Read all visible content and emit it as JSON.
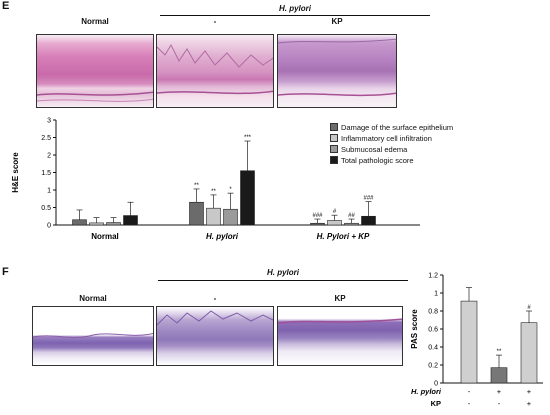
{
  "panelE": {
    "letter": "E",
    "header_group": "H. pylori",
    "image_labels": [
      "Normal",
      "-",
      "KP"
    ],
    "chart_data": {
      "type": "bar",
      "ylabel": "H&E score",
      "ylim": [
        0,
        3
      ],
      "yticks": [
        "0",
        "0.5",
        "1",
        "1.5",
        "2",
        "2.5",
        "3"
      ],
      "categories": [
        "Normal",
        "H. pylori",
        "H. Pylori + KP"
      ],
      "series": [
        {
          "name": "Damage of the surface epithelium",
          "color": "#6b6b6b",
          "values": [
            0.15,
            0.65,
            0.05
          ],
          "errors": [
            0.28,
            0.38,
            0.12
          ],
          "marks": [
            "",
            "**",
            "###"
          ]
        },
        {
          "name": "Inflammatory cell infiltration",
          "color": "#c8c8c8",
          "values": [
            0.06,
            0.48,
            0.13
          ],
          "errors": [
            0.15,
            0.38,
            0.15
          ],
          "marks": [
            "",
            "**",
            "#"
          ]
        },
        {
          "name": "Submucosal edema",
          "color": "#9a9a9a",
          "values": [
            0.07,
            0.45,
            0.05
          ],
          "errors": [
            0.14,
            0.46,
            0.12
          ],
          "marks": [
            "",
            "*",
            "##"
          ]
        },
        {
          "name": "Total pathologic score",
          "color": "#1a1a1a",
          "values": [
            0.27,
            1.55,
            0.25
          ],
          "errors": [
            0.38,
            0.85,
            0.42
          ],
          "marks": [
            "",
            "***",
            "###"
          ]
        }
      ]
    }
  },
  "panelF": {
    "letter": "F",
    "header_group": "H. pylori",
    "image_labels": [
      "Normal",
      "-",
      "KP"
    ],
    "chart_data": {
      "type": "bar",
      "ylabel": "PAS score",
      "ylim": [
        0,
        1.2
      ],
      "yticks": [
        "0",
        "0.2",
        "0.4",
        "0.6",
        "0.8",
        "1",
        "1.2"
      ],
      "values": [
        0.91,
        0.17,
        0.67
      ],
      "errors": [
        0.15,
        0.14,
        0.13
      ],
      "colors": [
        "#cfcfcf",
        "#777777",
        "#cfcfcf"
      ],
      "marks": [
        "",
        "**",
        "#"
      ],
      "row_labels": [
        "H. pylori",
        "KP"
      ],
      "row_values": [
        [
          "-",
          "+",
          "+"
        ],
        [
          "-",
          "-",
          "+"
        ]
      ]
    }
  }
}
